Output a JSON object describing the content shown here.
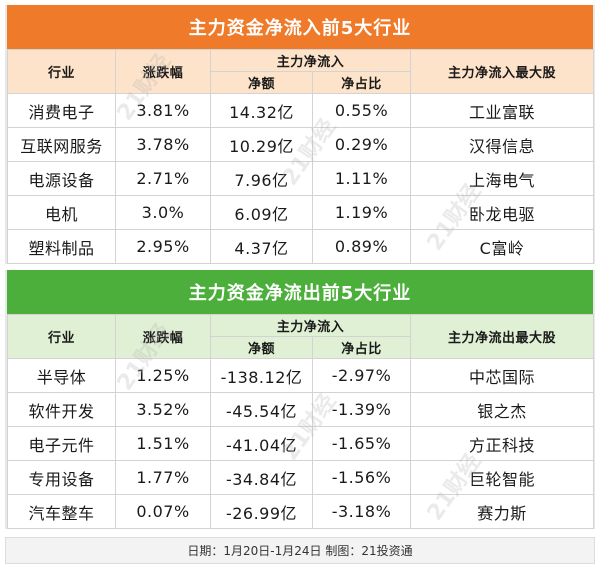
{
  "inflow": {
    "title": "主力资金净流入前5大行业",
    "headers": {
      "industry": "行业",
      "change": "涨跌幅",
      "net_group": "主力净流入",
      "amount": "净额",
      "ratio": "净占比",
      "top_stock": "主力净流入最大股"
    },
    "rows": [
      {
        "industry": "消费电子",
        "change": "3.81%",
        "amount": "14.32亿",
        "ratio": "0.55%",
        "stock": "工业富联"
      },
      {
        "industry": "互联网服务",
        "change": "3.78%",
        "amount": "10.29亿",
        "ratio": "0.29%",
        "stock": "汉得信息"
      },
      {
        "industry": "电源设备",
        "change": "2.71%",
        "amount": "7.96亿",
        "ratio": "1.11%",
        "stock": "上海电气"
      },
      {
        "industry": "电机",
        "change": "3.0%",
        "amount": "6.09亿",
        "ratio": "1.19%",
        "stock": "卧龙电驱"
      },
      {
        "industry": "塑料制品",
        "change": "2.95%",
        "amount": "4.37亿",
        "ratio": "0.89%",
        "stock": "C富岭"
      }
    ]
  },
  "outflow": {
    "title": "主力资金净流出前5大行业",
    "headers": {
      "industry": "行业",
      "change": "涨跌幅",
      "net_group": "主力净流入",
      "amount": "净额",
      "ratio": "净占比",
      "top_stock": "主力净流出最大股"
    },
    "rows": [
      {
        "industry": "半导体",
        "change": "1.25%",
        "amount": "-138.12亿",
        "ratio": "-2.97%",
        "stock": "中芯国际"
      },
      {
        "industry": "软件开发",
        "change": "3.52%",
        "amount": "-45.54亿",
        "ratio": "-1.39%",
        "stock": "银之杰"
      },
      {
        "industry": "电子元件",
        "change": "1.51%",
        "amount": "-41.04亿",
        "ratio": "-1.65%",
        "stock": "方正科技"
      },
      {
        "industry": "专用设备",
        "change": "1.77%",
        "amount": "-34.84亿",
        "ratio": "-1.56%",
        "stock": "巨轮智能"
      },
      {
        "industry": "汽车整车",
        "change": "0.07%",
        "amount": "-26.99亿",
        "ratio": "-3.18%",
        "stock": "赛力斯"
      }
    ]
  },
  "footer": "日期：1月20日-1月24日  制图：21投资通",
  "watermark": "21财经",
  "colors": {
    "orange": "#ef7a2a",
    "green": "#4caf3c",
    "orange_header": "#fde3c9",
    "green_header": "#dff0d4"
  }
}
